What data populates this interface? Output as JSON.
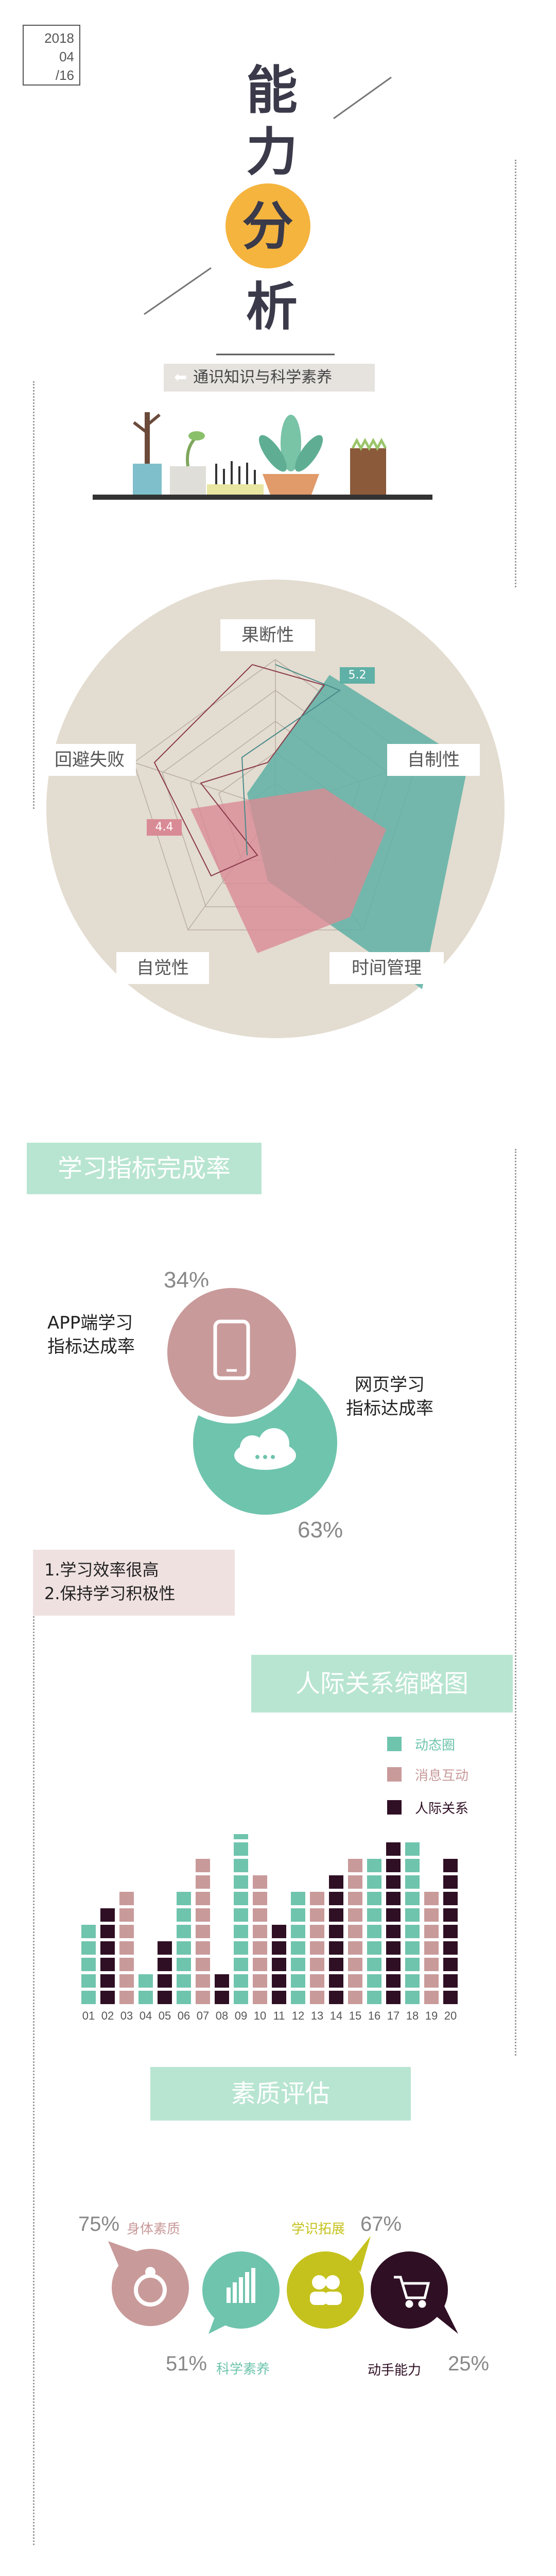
{
  "header": {
    "date_lines": [
      "2018",
      "04",
      "/16"
    ],
    "title_chars": [
      "能",
      "力",
      "分",
      "析"
    ],
    "subtitle": "通识知识与科学素养"
  },
  "radar": {
    "axes": [
      "果断性",
      "自制性",
      "时间管理",
      "自觉性",
      "回避失败"
    ],
    "badge_high": "5.2",
    "badge_low": "4.4"
  },
  "section1": {
    "tag": "学习指标完成率",
    "app_label_lines": [
      "APP端学习",
      "指标达成率"
    ],
    "app_pct": "34%",
    "web_label_lines": [
      "网页学习",
      "指标达成率"
    ],
    "web_pct": "63%",
    "notes": [
      "1.学习效率很高",
      "2.保持学习积极性"
    ]
  },
  "section2": {
    "tag": "人际关系缩略图",
    "legend": [
      {
        "name": "动态圈",
        "color": "#6fc4ad"
      },
      {
        "name": "消息互动",
        "color": "#c99a9a"
      },
      {
        "name": "人际关系",
        "color": "#2f0f24"
      }
    ]
  },
  "chart_data": {
    "type": "bar",
    "categories": [
      "01",
      "02",
      "03",
      "04",
      "05",
      "06",
      "07",
      "08",
      "09",
      "10",
      "11",
      "12",
      "13",
      "14",
      "15",
      "16",
      "17",
      "18",
      "19",
      "20"
    ],
    "values": [
      5,
      6,
      7,
      2,
      4,
      7,
      9,
      2,
      11,
      8,
      5,
      7,
      7,
      8,
      9,
      9,
      10,
      10,
      7,
      9
    ],
    "bar_colors": [
      "#6fc4ad",
      "#2f0f24",
      "#c99a9a",
      "#6fc4ad",
      "#2f0f24",
      "#6fc4ad",
      "#c99a9a",
      "#2f0f24",
      "#6fc4ad",
      "#c99a9a",
      "#2f0f24",
      "#6fc4ad",
      "#c99a9a",
      "#2f0f24",
      "#c99a9a",
      "#6fc4ad",
      "#2f0f24",
      "#6fc4ad",
      "#c99a9a",
      "#2f0f24"
    ]
  },
  "section3": {
    "tag": "素质评估",
    "items": [
      {
        "label": "身体素质",
        "pct": "75%",
        "color": "#c99a9a"
      },
      {
        "label": "科学素养",
        "pct": "51%",
        "color": "#6fc4ad"
      },
      {
        "label": "学识拓展",
        "pct": "67%",
        "color": "#c5c21d"
      },
      {
        "label": "动手能力",
        "pct": "25%",
        "color": "#2f0f24"
      }
    ]
  },
  "colors": {
    "teal": "#6fc4ad",
    "pink": "#c99a9a",
    "dark": "#2f0f24",
    "yellow": "#f5b43e",
    "olive": "#c5c21d",
    "beige": "#e3dcd0"
  }
}
